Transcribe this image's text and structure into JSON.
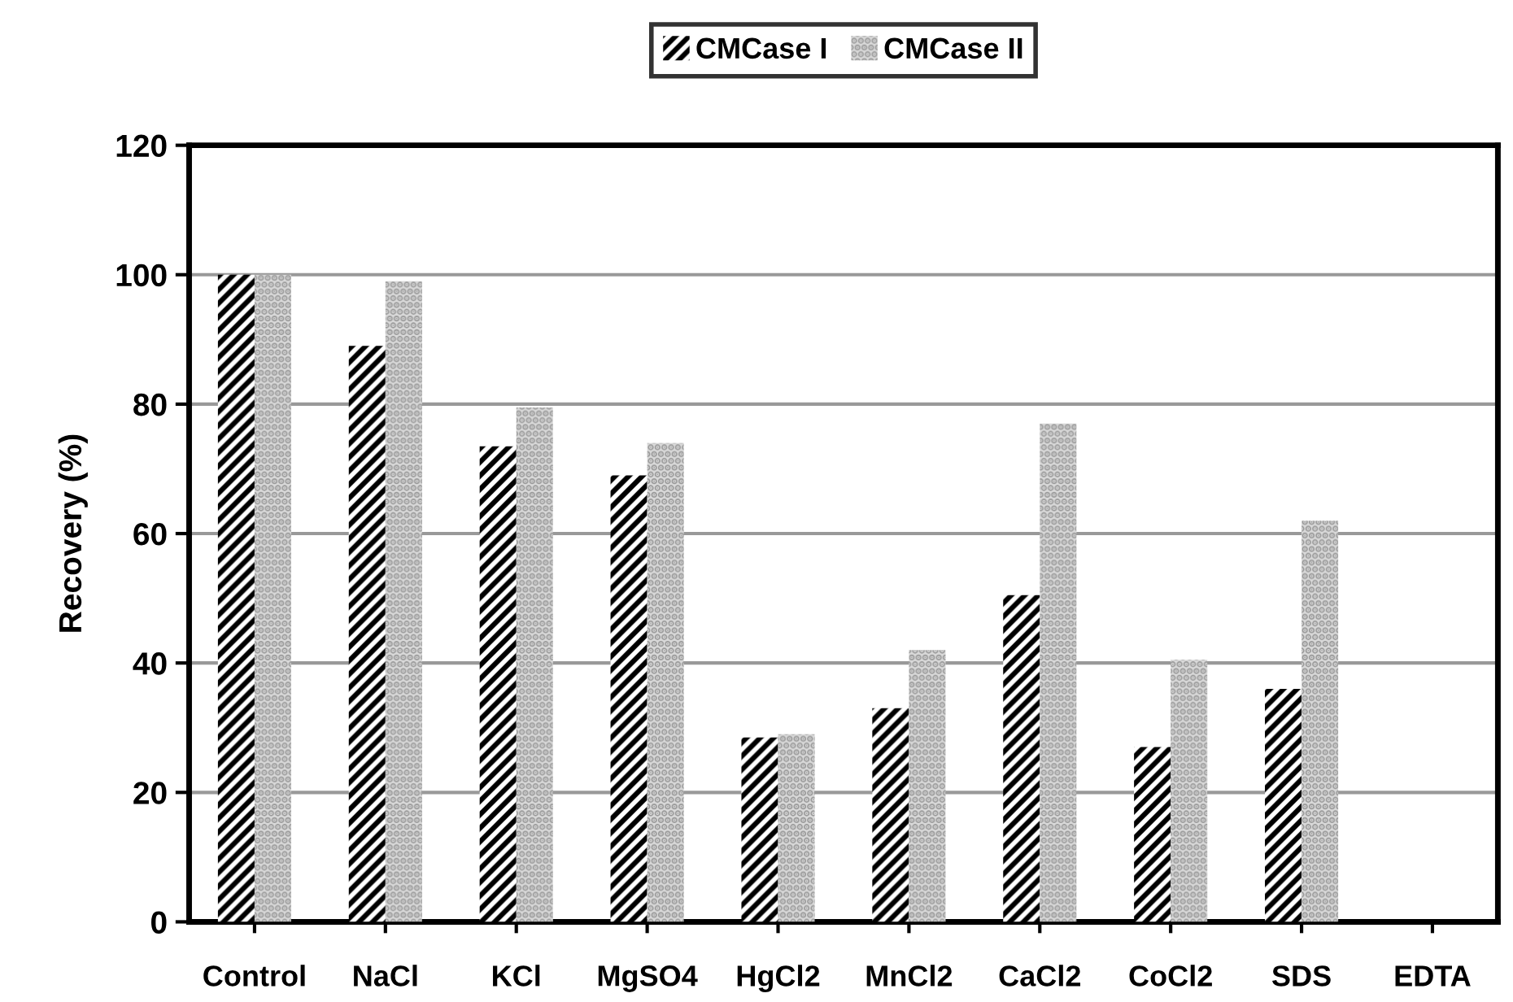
{
  "chart_data": {
    "type": "bar",
    "ylabel": "Recovery (%)",
    "categories": [
      "Control",
      "NaCl",
      "KCl",
      "MgSO4",
      "HgCl2",
      "MnCl2",
      "CaCl2",
      "CoCl2",
      "SDS",
      "EDTA"
    ],
    "series": [
      {
        "name": "CMCase I",
        "color": "#000000",
        "values": [
          100,
          89,
          73.5,
          69,
          28.5,
          33,
          50.5,
          27,
          36,
          0
        ]
      },
      {
        "name": "CMCase II",
        "color": "#d9d9d9",
        "values": [
          100,
          99,
          79.5,
          74,
          29,
          42,
          77,
          40.5,
          62,
          0
        ]
      }
    ],
    "ylim": [
      0,
      120
    ],
    "yticks": [
      0,
      20,
      40,
      60,
      80,
      100,
      120
    ],
    "grid": "y",
    "legend": "top"
  }
}
